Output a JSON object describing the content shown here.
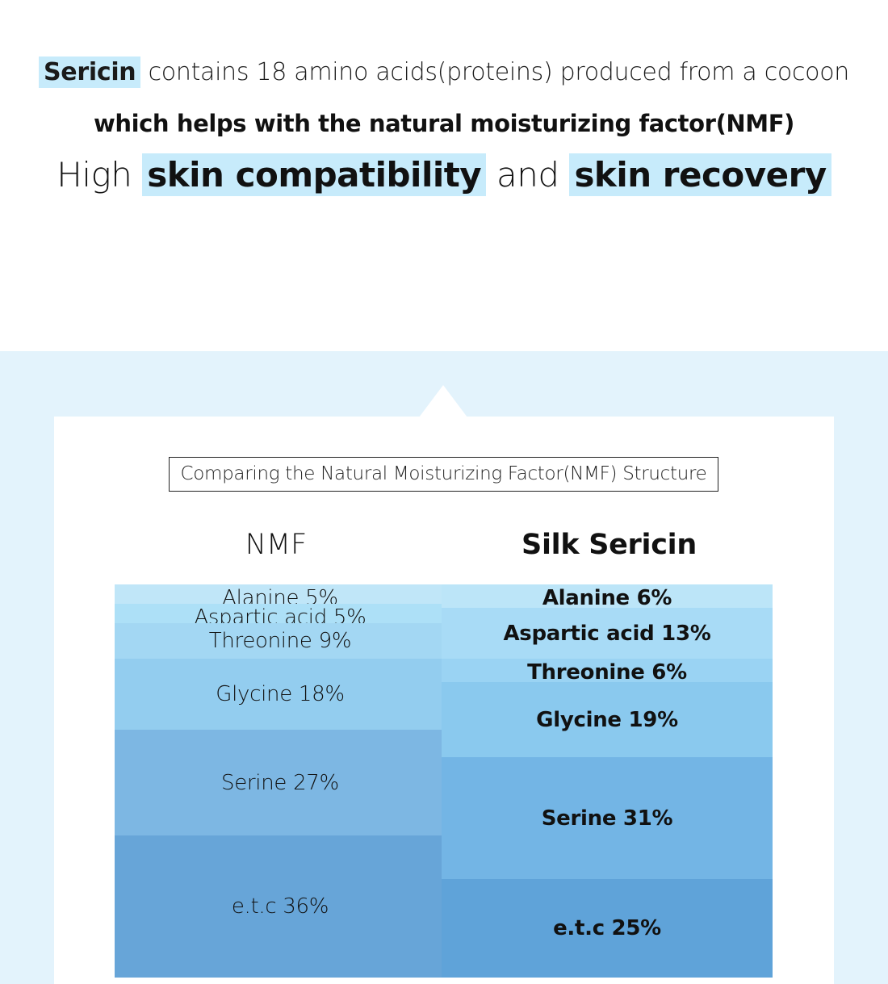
{
  "intro": {
    "line1_highlight": "Sericin",
    "line1_rest": "contains 18 amino acids(proteins) produced from a cocoon",
    "line2": "which helps with the natural moisturizing factor(NMF)",
    "line3_prefix": "High",
    "line3_hl1": "skin compatibility",
    "line3_mid": "and",
    "line3_hl2": "skin recovery"
  },
  "comparison": {
    "caption": "Comparing the Natural Moisturizing Factor(NMF) Structure",
    "left_heading": "NMF",
    "right_heading": "Silk Sericin",
    "nmf": [
      {
        "label": "Alanine 5%",
        "percent": 5,
        "color": "#c0e6f8"
      },
      {
        "label": "Aspartic acid 5%",
        "percent": 5,
        "color": "#ade0f7"
      },
      {
        "label": "Threonine 9%",
        "percent": 9,
        "color": "#a3d7f3"
      },
      {
        "label": "Glycine 18%",
        "percent": 18,
        "color": "#93cdef"
      },
      {
        "label": "Serine 27%",
        "percent": 27,
        "color": "#7db7e3"
      },
      {
        "label": "e.t.c 36%",
        "percent": 36,
        "color": "#67a5d8"
      }
    ],
    "silk": [
      {
        "label": "Alanine 6%",
        "percent": 6,
        "color": "#bce5f8"
      },
      {
        "label": "Aspartic acid 13%",
        "percent": 13,
        "color": "#a8dbf6"
      },
      {
        "label": "Threonine 6%",
        "percent": 6,
        "color": "#9ad3f3"
      },
      {
        "label": "Glycine 19%",
        "percent": 19,
        "color": "#8ac9ee"
      },
      {
        "label": "Serine 31%",
        "percent": 31,
        "color": "#73b5e5"
      },
      {
        "label": "e.t.c 25%",
        "percent": 25,
        "color": "#5fa3d9"
      }
    ]
  }
}
